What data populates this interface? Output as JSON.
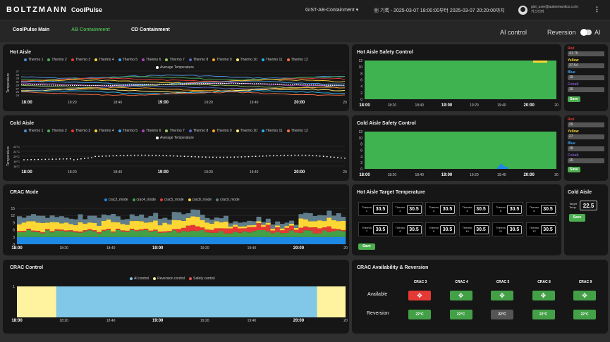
{
  "header": {
    "logo": "BOLTZMANN",
    "app": "CoolPulse",
    "site": "GIST-AB-Containment",
    "range": "기록 - 2025-03-07 18:00:00부터 2025-03-07 20:20:00까지",
    "email": "gist_user@autoemantics.co.kr",
    "role": "카스터머"
  },
  "tabs": [
    {
      "label": "CoolPulse Main"
    },
    {
      "label": "AB Containment"
    },
    {
      "label": "CD Containment"
    }
  ],
  "controls": {
    "ai_label": "AI control",
    "reversion_label": "Reversion",
    "ai_short": "AI"
  },
  "colors": {
    "accent": "#4caf50",
    "red": "#e53935",
    "yellow": "#fdd835",
    "blue": "#1e88e5",
    "cobalt": "#5e35b1"
  },
  "hot_aisle": {
    "title": "Hot Aisle",
    "ylabel": "Temperature",
    "avg_label": "Average Temperature",
    "y_ticks": [
      "37",
      "35",
      "33",
      "31",
      "29",
      "27",
      "25",
      "23"
    ]
  },
  "cold_aisle": {
    "title": "Cold Aisle",
    "ylabel": "Temperature",
    "avg_label": "Average Temperature",
    "y_ticks": [
      "22°C",
      "21°C",
      "20°C",
      "19°C",
      "18°C"
    ]
  },
  "thermo_series": [
    "Thermo 1",
    "Thermo 2",
    "Thermo 3",
    "Thermo 4",
    "Thermo 5",
    "Thermo 6",
    "Thermo 7",
    "Thermo 8",
    "Thermo 9",
    "Thermo 10",
    "Thermo 11",
    "Thermo 12"
  ],
  "thermo_colors": [
    "#4a90d9",
    "#4caf50",
    "#e53935",
    "#fdd835",
    "#42a5f5",
    "#ab47bc",
    "#9ccc65",
    "#5c6bc0",
    "#ffa726",
    "#fff176",
    "#29b6f6",
    "#ff7043"
  ],
  "time_ticks": [
    "18:00",
    "18:20",
    "18:40",
    "19:00",
    "19:20",
    "19:40",
    "20:00",
    "20"
  ],
  "hot_safety": {
    "title": "Hot Aisle Safety Control",
    "y_ticks": [
      "12",
      "10",
      "8",
      "6",
      "4",
      "2",
      "0"
    ]
  },
  "cold_safety": {
    "title": "Cold Aisle Safety Control",
    "y_ticks": [
      "12",
      "10",
      "8",
      "6",
      "4",
      "2",
      "0"
    ]
  },
  "hot_thresholds": {
    "red_label": "Red",
    "red": "41.76",
    "yellow_label": "Yellow",
    "yellow": "37.54",
    "blue_label": "Blue",
    "blue": "19",
    "cobalt_label": "Cobalt",
    "cobalt": "16",
    "save": "Save"
  },
  "cold_thresholds": {
    "red_label": "Red",
    "red": "29",
    "yellow_label": "Yellow",
    "yellow": "27",
    "blue_label": "Blue",
    "blue": "18",
    "cobalt_label": "Cobalt",
    "cobalt": "16",
    "save": "Save"
  },
  "crac_mode": {
    "title": "CRAC Mode",
    "series": [
      "crac3_mode",
      "crac4_mode",
      "crac5_mode",
      "crac8_mode",
      "crac9_mode"
    ],
    "colors": [
      "#1e88e5",
      "#43a047",
      "#e53935",
      "#fdd835",
      "#607d8b"
    ],
    "y_ticks": [
      "15",
      "12",
      "9",
      "6",
      "3",
      "0"
    ]
  },
  "target": {
    "title": "Hot Aisle Target Temperature",
    "cells": [
      {
        "label": "Thermo 1",
        "value": "30.5"
      },
      {
        "label": "Thermo 2",
        "value": "30.5"
      },
      {
        "label": "Thermo 3",
        "value": "30.5"
      },
      {
        "label": "Thermo 4",
        "value": "30.5"
      },
      {
        "label": "Thermo 5",
        "value": "30.5"
      },
      {
        "label": "Thermo 6",
        "value": "30.5"
      },
      {
        "label": "Thermo 7",
        "value": "30.5"
      },
      {
        "label": "Thermo 8",
        "value": "30.5"
      },
      {
        "label": "Thermo 9",
        "value": "30.5"
      },
      {
        "label": "Thermo 10",
        "value": "30.5"
      },
      {
        "label": "Thermo 11",
        "value": "30.5"
      },
      {
        "label": "Thermo 12",
        "value": "30.5"
      }
    ],
    "save": "Save"
  },
  "cold_target": {
    "title": "Cold Aisle",
    "label": "Target Temp.",
    "value": "22.5",
    "save": "Save"
  },
  "crac_control": {
    "title": "CRAC Control",
    "legend": [
      "AI control",
      "Reversion control",
      "Safety control"
    ],
    "colors": [
      "#81c7e8",
      "#fff3a0",
      "#ef5350"
    ],
    "y_tick": "1"
  },
  "availability": {
    "title": "CRAC Availability & Reversion",
    "units": [
      "CRAC 3",
      "CRAC 4",
      "CRAC 5",
      "CRAC 8",
      "CRAC 9"
    ],
    "available_label": "Available",
    "reversion_label": "Reversion",
    "available": [
      "down",
      "up",
      "up",
      "up",
      "up"
    ],
    "reversion": [
      "22°C",
      "22°C",
      "22°C",
      "22°C",
      "22°C"
    ],
    "reversion_active": [
      true,
      true,
      false,
      true,
      true
    ]
  }
}
